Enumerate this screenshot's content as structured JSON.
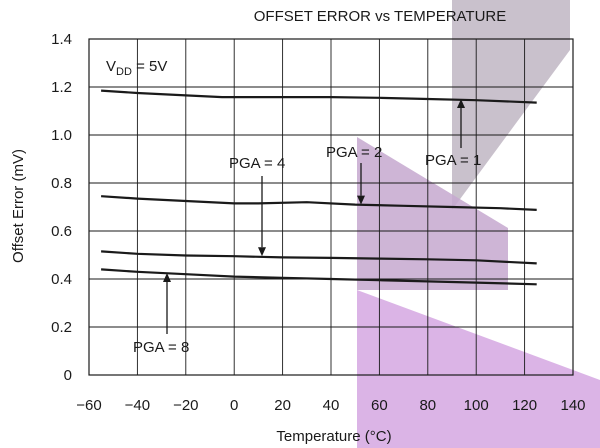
{
  "chart_data": {
    "type": "line",
    "title": "OFFSET ERROR vs TEMPERATURE",
    "xlabel": "Temperature (°C)",
    "ylabel": "Offset Error (mV)",
    "xlim": [
      -60,
      140
    ],
    "ylim": [
      0,
      1.4
    ],
    "x_ticks": [
      "−60",
      "−40",
      "−20",
      "0",
      "20",
      "40",
      "60",
      "80",
      "100",
      "120",
      "140"
    ],
    "y_ticks": [
      "0",
      "0.2",
      "0.4",
      "0.6",
      "0.8",
      "1.0",
      "1.2",
      "1.4"
    ],
    "grid": true,
    "condition": {
      "main": "V",
      "sub": "DD",
      "rest": " = 5V"
    },
    "series": [
      {
        "name": "PGA = 1",
        "x": [
          -55,
          -40,
          -20,
          -5,
          0,
          20,
          40,
          60,
          80,
          100,
          125
        ],
        "y": [
          1.185,
          1.175,
          1.165,
          1.158,
          1.158,
          1.158,
          1.158,
          1.155,
          1.15,
          1.145,
          1.135
        ]
      },
      {
        "name": "PGA = 2",
        "x": [
          -55,
          -40,
          -20,
          0,
          10,
          30,
          50,
          70,
          90,
          110,
          125
        ],
        "y": [
          0.745,
          0.735,
          0.725,
          0.715,
          0.715,
          0.72,
          0.71,
          0.705,
          0.7,
          0.695,
          0.688
        ]
      },
      {
        "name": "PGA = 4",
        "x": [
          -55,
          -40,
          -20,
          0,
          20,
          40,
          60,
          80,
          100,
          125
        ],
        "y": [
          0.515,
          0.505,
          0.498,
          0.495,
          0.49,
          0.488,
          0.485,
          0.482,
          0.478,
          0.465
        ]
      },
      {
        "name": "PGA = 8",
        "x": [
          -55,
          -40,
          -20,
          0,
          20,
          40,
          60,
          80,
          100,
          125
        ],
        "y": [
          0.44,
          0.43,
          0.42,
          0.41,
          0.405,
          0.4,
          0.395,
          0.39,
          0.385,
          0.378
        ]
      }
    ],
    "annotations": [
      {
        "text": "PGA = 1",
        "arrow_to": [
          90,
          1.15
        ]
      },
      {
        "text": "PGA = 2",
        "arrow_to": [
          50,
          0.71
        ]
      },
      {
        "text": "PGA = 4",
        "arrow_to": [
          10,
          0.495
        ]
      },
      {
        "text": "PGA = 8",
        "arrow_to": [
          -28,
          0.425
        ]
      }
    ]
  },
  "colors": {
    "line": "#1a1a1a",
    "grid": "#1a1a1a",
    "watermark_gray": "#b9b2be",
    "watermark_purple": "#cfa3dc"
  }
}
